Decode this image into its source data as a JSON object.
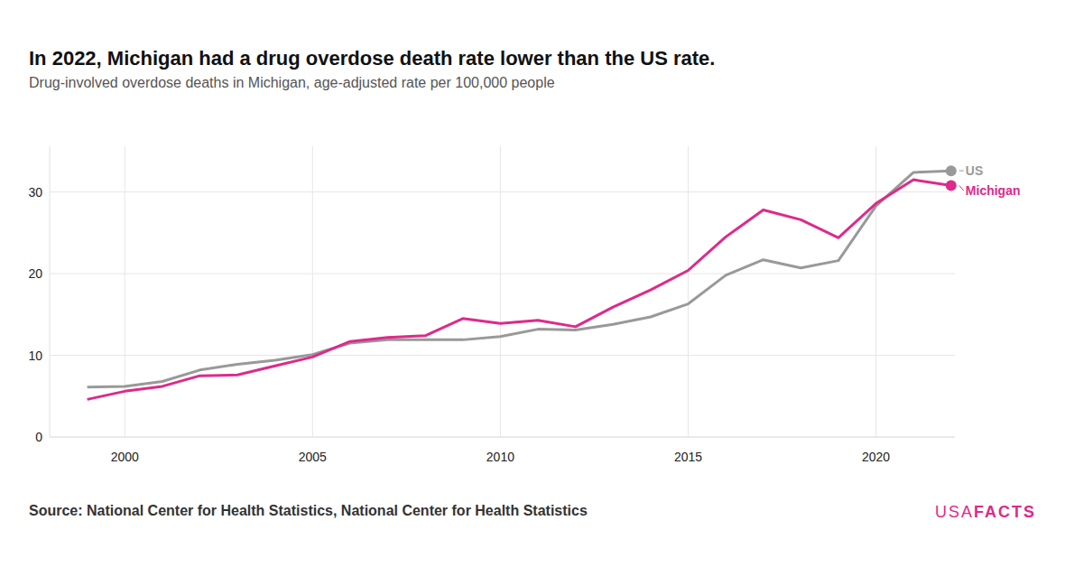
{
  "chart_data": {
    "type": "line",
    "title": "In 2022, Michigan had a drug overdose death rate lower than the US rate.",
    "subtitle": "Drug-involved overdose deaths in Michigan, age-adjusted rate per 100,000 people",
    "source": "Source: National Center for Health Statistics, National Center for Health Statistics",
    "logo": [
      "USA",
      "FACTS"
    ],
    "x": [
      1999,
      2000,
      2001,
      2002,
      2003,
      2004,
      2005,
      2006,
      2007,
      2008,
      2009,
      2010,
      2011,
      2012,
      2013,
      2014,
      2015,
      2016,
      2017,
      2018,
      2019,
      2020,
      2021,
      2022
    ],
    "series": [
      {
        "name": "US",
        "color": "#999999",
        "marker": "end-dot",
        "values": [
          6.1,
          6.2,
          6.8,
          8.2,
          8.9,
          9.4,
          10.1,
          11.5,
          11.9,
          11.9,
          11.9,
          12.3,
          13.2,
          13.1,
          13.8,
          14.7,
          16.3,
          19.8,
          21.7,
          20.7,
          21.6,
          28.3,
          32.4,
          32.6
        ]
      },
      {
        "name": "Michigan",
        "color": "#dd2a8c",
        "marker": "end-dot",
        "values": [
          4.6,
          5.6,
          6.2,
          7.5,
          7.6,
          8.7,
          9.8,
          11.7,
          12.2,
          12.4,
          14.5,
          13.9,
          14.3,
          13.5,
          15.9,
          18.0,
          20.4,
          24.5,
          27.8,
          26.6,
          24.4,
          28.6,
          31.5,
          30.8
        ]
      }
    ],
    "xlim": [
      1998,
      2022.1
    ],
    "xticks": [
      2000,
      2005,
      2010,
      2015,
      2020
    ],
    "ylim": [
      0,
      35.6
    ],
    "yticks": [
      0,
      10,
      20,
      30
    ],
    "grid": true
  }
}
